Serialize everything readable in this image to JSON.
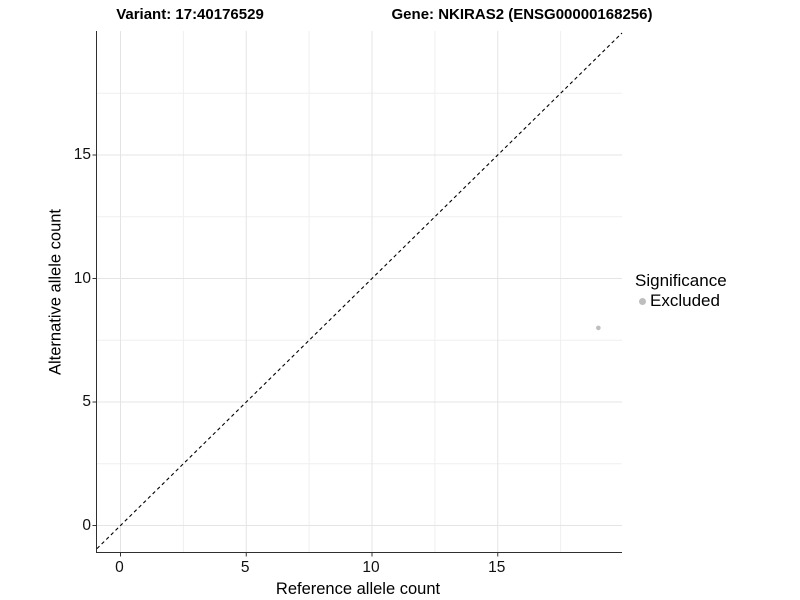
{
  "titles": {
    "variant": "Variant: 17:40176529",
    "gene": "Gene: NKIRAS2 (ENSG00000168256)"
  },
  "legend": {
    "title": "Significance",
    "items": [
      {
        "label": "Excluded",
        "color": "#bebebe"
      }
    ]
  },
  "colors": {
    "background": "#ffffff",
    "axis_line": "#2f2f2f",
    "tick_mark": "#333333",
    "grid_major": "#e4e4e4",
    "grid_minor": "#efefef",
    "reference_line": "#000000",
    "point_excluded": "#bebebe"
  },
  "chart_data": {
    "type": "scatter",
    "title_left": "Variant: 17:40176529",
    "title_right": "Gene: NKIRAS2 (ENSG00000168256)",
    "xlabel": "Reference allele count",
    "ylabel": "Alternative allele count",
    "xlim": [
      -0.934,
      19.94
    ],
    "ylim": [
      -1.072,
      20.02
    ],
    "x_ticks": [
      0,
      5,
      10,
      15
    ],
    "y_ticks": [
      0,
      5,
      10,
      15
    ],
    "x_minor_gridlines": [
      2.5,
      7.5,
      12.5,
      17.5
    ],
    "y_minor_gridlines": [
      2.5,
      7.5,
      12.5,
      17.5
    ],
    "grid": true,
    "legend_position": "right",
    "legend_title": "Significance",
    "series": [
      {
        "name": "Excluded",
        "color": "#bebebe",
        "points": [
          {
            "x": 19,
            "y": 8
          }
        ]
      }
    ],
    "reference_line": {
      "equation": "y = x",
      "style": "dashed",
      "color": "#000000",
      "x1": -0.934,
      "y1": -0.934,
      "x2": 19.94,
      "y2": 19.94
    }
  }
}
